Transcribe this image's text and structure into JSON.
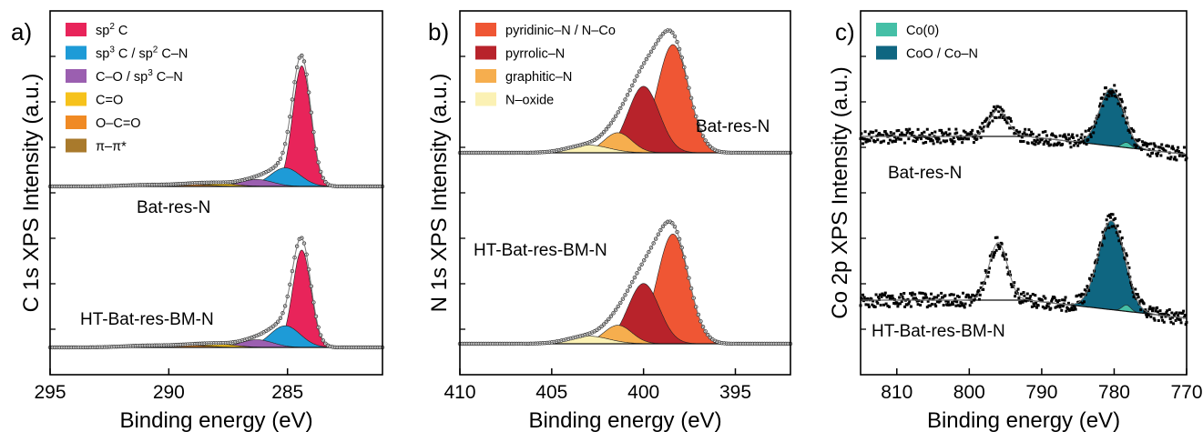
{
  "figure": {
    "xlabel": "Binding energy (eV)"
  },
  "chart_data": [
    {
      "panel": "a)",
      "type": "area",
      "ylabel": "C 1s XPS Intensity (a.u.)",
      "xlabel": "Binding energy (eV)",
      "xlim": [
        295,
        281
      ],
      "xticks": [
        295,
        290,
        285
      ],
      "x_reversed": true,
      "legend_placement": "top-left",
      "spectra": [
        {
          "name": "Bat-res-N",
          "components": [
            {
              "name": "sp2 C",
              "color": "#E8245A",
              "center": 284.4,
              "fwhm": 0.9,
              "amp": 0.78
            },
            {
              "name": "sp3 C / sp2 C–N",
              "color": "#1E9BD7",
              "center": 285.1,
              "fwhm": 1.5,
              "amp": 0.12
            },
            {
              "name": "C–O / sp3 C–N",
              "color": "#9B5FB0",
              "center": 286.3,
              "fwhm": 1.6,
              "amp": 0.045
            },
            {
              "name": "C=O",
              "color": "#F6C21B",
              "center": 287.9,
              "fwhm": 1.8,
              "amp": 0.018
            },
            {
              "name": "O–C=O",
              "color": "#F08A24",
              "center": 289.0,
              "fwhm": 1.8,
              "amp": 0.012
            },
            {
              "name": "π–π*",
              "color": "#A97A2C",
              "center": 290.8,
              "fwhm": 2.5,
              "amp": 0.01
            }
          ]
        },
        {
          "name": "HT-Bat-res-BM-N",
          "components": [
            {
              "name": "sp2 C",
              "color": "#E8245A",
              "center": 284.4,
              "fwhm": 0.9,
              "amp": 0.63
            },
            {
              "name": "sp3 C / sp2 C–N",
              "color": "#1E9BD7",
              "center": 285.1,
              "fwhm": 1.5,
              "amp": 0.14
            },
            {
              "name": "C–O / sp3 C–N",
              "color": "#9B5FB0",
              "center": 286.3,
              "fwhm": 1.6,
              "amp": 0.05
            },
            {
              "name": "C=O",
              "color": "#F6C21B",
              "center": 287.9,
              "fwhm": 1.8,
              "amp": 0.02
            },
            {
              "name": "O–C=O",
              "color": "#F08A24",
              "center": 289.0,
              "fwhm": 1.8,
              "amp": 0.012
            },
            {
              "name": "π–π*",
              "color": "#A97A2C",
              "center": 290.8,
              "fwhm": 2.5,
              "amp": 0.012
            }
          ]
        }
      ],
      "legend": [
        {
          "main": "sp",
          "sup": "2",
          "rest": " C",
          "color": "#E8245A"
        },
        {
          "main": "sp",
          "sup": "3",
          "rest": " C / sp",
          "sup2": "2",
          "rest2": " C–N",
          "color": "#1E9BD7"
        },
        {
          "main": "C–O / sp",
          "sup": "3",
          "rest": " C–N",
          "color": "#9B5FB0"
        },
        {
          "main": "C=O",
          "color": "#F6C21B"
        },
        {
          "main": "O–C=O",
          "color": "#F08A24"
        },
        {
          "main": "π–π*",
          "color": "#A97A2C"
        }
      ]
    },
    {
      "panel": "b)",
      "type": "area",
      "ylabel": "N 1s XPS Intensity (a.u.)",
      "xlabel": "Binding energy (eV)",
      "xlim": [
        410,
        392
      ],
      "xticks": [
        410,
        405,
        400,
        395
      ],
      "x_reversed": true,
      "legend_placement": "top-left",
      "spectra": [
        {
          "name": "Bat-res-N",
          "components": [
            {
              "name": "pyridinic–N / N–Co",
              "color": "#EF5634",
              "center": 398.4,
              "fwhm": 2.0,
              "amp": 0.7
            },
            {
              "name": "pyrrolic–N",
              "color": "#B8232B",
              "center": 400.0,
              "fwhm": 2.0,
              "amp": 0.43
            },
            {
              "name": "graphitic–N",
              "color": "#F6AE4E",
              "center": 401.4,
              "fwhm": 1.8,
              "amp": 0.13
            },
            {
              "name": "N–oxide",
              "color": "#FBF1B4",
              "center": 403.0,
              "fwhm": 2.6,
              "amp": 0.05
            }
          ]
        },
        {
          "name": "HT-Bat-res-BM-N",
          "components": [
            {
              "name": "pyridinic–N / N–Co",
              "color": "#EF5634",
              "center": 398.4,
              "fwhm": 2.0,
              "amp": 0.71
            },
            {
              "name": "pyrrolic–N",
              "color": "#B8232B",
              "center": 400.0,
              "fwhm": 2.0,
              "amp": 0.39
            },
            {
              "name": "graphitic–N",
              "color": "#F6AE4E",
              "center": 401.4,
              "fwhm": 1.8,
              "amp": 0.12
            },
            {
              "name": "N–oxide",
              "color": "#FBF1B4",
              "center": 403.0,
              "fwhm": 2.6,
              "amp": 0.05
            }
          ]
        }
      ],
      "legend": [
        {
          "main": "pyridinic–N / N–Co",
          "color": "#EF5634"
        },
        {
          "main": "pyrrolic–N",
          "color": "#B8232B"
        },
        {
          "main": "graphitic–N",
          "color": "#F6AE4E"
        },
        {
          "main": "N–oxide",
          "color": "#FBF1B4"
        }
      ]
    },
    {
      "panel": "c)",
      "type": "area",
      "ylabel": "Co 2p XPS Intensity (a.u.)",
      "xlabel": "Binding energy (eV)",
      "xlim": [
        815,
        770
      ],
      "xticks": [
        810,
        800,
        790,
        780,
        770
      ],
      "x_reversed": true,
      "legend_placement": "top-left",
      "spectra": [
        {
          "name": "Bat-res-N",
          "components": [
            {
              "name": "CoO / Co–N",
              "color": "#0F6681",
              "center": 780.4,
              "fwhm": 3.8,
              "amp": 0.55
            },
            {
              "name": "Co(0)",
              "color": "#45BFA6",
              "center": 778.3,
              "fwhm": 1.4,
              "amp": 0.05
            }
          ],
          "satellite": {
            "center": 796.0,
            "fwhm": 3.0,
            "amp": 0.25
          }
        },
        {
          "name": "HT-Bat-res-BM-N",
          "components": [
            {
              "name": "CoO / Co–N",
              "color": "#0F6681",
              "center": 780.4,
              "fwhm": 4.2,
              "amp": 0.85
            },
            {
              "name": "Co(0)",
              "color": "#45BFA6",
              "center": 778.3,
              "fwhm": 1.4,
              "amp": 0.06
            }
          ],
          "satellite": {
            "center": 796.0,
            "fwhm": 3.0,
            "amp": 0.55
          }
        }
      ],
      "legend": [
        {
          "main": "Co(0)",
          "color": "#45BFA6"
        },
        {
          "main": "CoO / Co–N",
          "color": "#0F6681"
        }
      ]
    }
  ]
}
